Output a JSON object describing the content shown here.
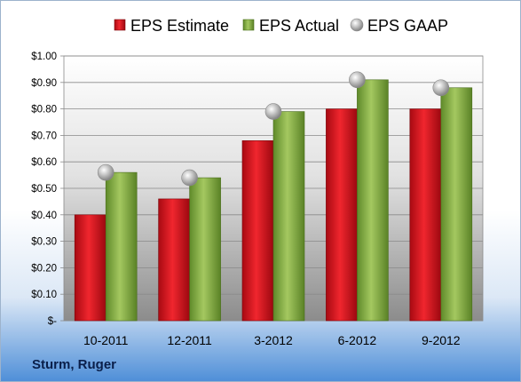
{
  "company": "Sturm, Ruger",
  "chart_data": {
    "type": "bar",
    "title": "",
    "xlabel": "",
    "ylabel": "",
    "categories": [
      "10-2011",
      "12-2011",
      "3-2012",
      "6-2012",
      "9-2012"
    ],
    "series": [
      {
        "name": "EPS Estimate",
        "mark": "bar",
        "color": "#e0141e",
        "values": [
          0.4,
          0.46,
          0.68,
          0.8,
          0.8
        ]
      },
      {
        "name": "EPS Actual",
        "mark": "bar",
        "color": "#8cb34a",
        "values": [
          0.56,
          0.54,
          0.79,
          0.91,
          0.88
        ]
      },
      {
        "name": "EPS GAAP",
        "mark": "sphere",
        "color": "#a8a8a8",
        "values": [
          0.56,
          0.54,
          0.79,
          0.91,
          0.88
        ]
      }
    ],
    "ylim": [
      0,
      1.0
    ],
    "y_ticks": [
      0,
      0.1,
      0.2,
      0.3,
      0.4,
      0.5,
      0.6,
      0.7,
      0.8,
      0.9,
      1.0
    ],
    "y_tick_labels": [
      "$-",
      "$0.10",
      "$0.20",
      "$0.30",
      "$0.40",
      "$0.50",
      "$0.60",
      "$0.70",
      "$0.80",
      "$0.90",
      "$1.00"
    ],
    "grid": true,
    "legend_position": "top"
  }
}
